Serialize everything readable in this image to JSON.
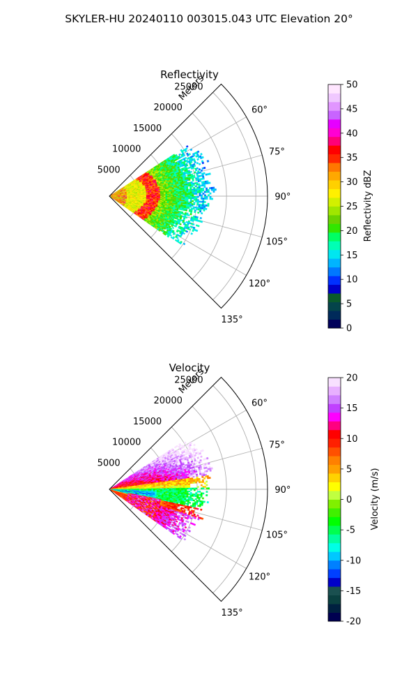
{
  "figure": {
    "suptitle": "SKYLER-HU  20240110  003015.043 UTC Elevation 20°"
  },
  "chart_data": [
    {
      "type": "heatmap",
      "subtype": "radar-ppi-sector",
      "title": "Reflectivity",
      "radial_axis_label": "Meters",
      "radial_ticks": [
        5000,
        10000,
        15000,
        20000,
        25000
      ],
      "range_limit_m": 27000,
      "azimuth_ticks_deg": [
        60,
        75,
        90,
        105,
        120,
        135
      ],
      "azimuth_tick_labels": [
        "60°",
        "75°",
        "90°",
        "105°",
        "120°",
        "135°"
      ],
      "azimuth_span_deg": [
        45,
        135
      ],
      "grid": true,
      "data_extent": {
        "azimuth_deg": [
          57,
          125
        ],
        "max_range_m": [
          19500,
          15000
        ],
        "description": "echoes within ~16 km; arc of high reflectivity near 6-8 km range"
      },
      "colorbar": {
        "label": "Reflectivity dBZ",
        "min": 0,
        "max": 50,
        "ticks": [
          0,
          5,
          10,
          15,
          20,
          25,
          30,
          35,
          40,
          45,
          50
        ],
        "colormap": "pyart_HomeyerRainbow-like"
      }
    },
    {
      "type": "heatmap",
      "subtype": "radar-ppi-sector",
      "title": "Velocity",
      "radial_axis_label": "Meters",
      "radial_ticks": [
        5000,
        10000,
        15000,
        20000,
        25000
      ],
      "range_limit_m": 27000,
      "azimuth_ticks_deg": [
        60,
        75,
        90,
        105,
        120,
        135
      ],
      "azimuth_tick_labels": [
        "60°",
        "75°",
        "90°",
        "105°",
        "120°",
        "135°"
      ],
      "azimuth_span_deg": [
        45,
        135
      ],
      "grid": true,
      "data_extent": {
        "azimuth_deg": [
          57,
          125
        ],
        "max_range_m": [
          19500,
          15000
        ],
        "description": "positive (red/magenta) velocities north of ~85°, negative (green/cyan) near 90-110°, positive again south"
      },
      "colorbar": {
        "label": "Velocity (m/s)",
        "min": -20,
        "max": 20,
        "ticks": [
          -20,
          -15,
          -10,
          -5,
          0,
          5,
          10,
          15,
          20
        ],
        "colormap": "pyart_BuDRd18-like"
      }
    }
  ],
  "palette": {
    "refl": [
      "#00005a",
      "#002a5a",
      "#04444a",
      "#0a5a2a",
      "#0000c8",
      "#0030ff",
      "#0078ff",
      "#00b4ff",
      "#00e6f0",
      "#00ffb4",
      "#00ff64",
      "#32e600",
      "#6ad200",
      "#a0e600",
      "#d2f000",
      "#fff000",
      "#ffd000",
      "#ffa800",
      "#ff7800",
      "#ff2800",
      "#ff0000",
      "#ff0078",
      "#ff00d2",
      "#e600ff",
      "#c864ff",
      "#e196ff",
      "#f0c8ff",
      "#ffe6ff"
    ],
    "vel": [
      "#000050",
      "#002040",
      "#0a4040",
      "#1a5050",
      "#0000c8",
      "#0040ff",
      "#0080ff",
      "#00c8ff",
      "#00ffe6",
      "#00ffa0",
      "#00ff50",
      "#00ff00",
      "#40f000",
      "#80f000",
      "#c0ff40",
      "#ffff00",
      "#ffd200",
      "#ffa000",
      "#ff8000",
      "#ff5000",
      "#ff2000",
      "#ff0000",
      "#ff0080",
      "#ff00ff",
      "#c040ff",
      "#d080ff",
      "#e8b0ff",
      "#f8e0ff"
    ]
  }
}
